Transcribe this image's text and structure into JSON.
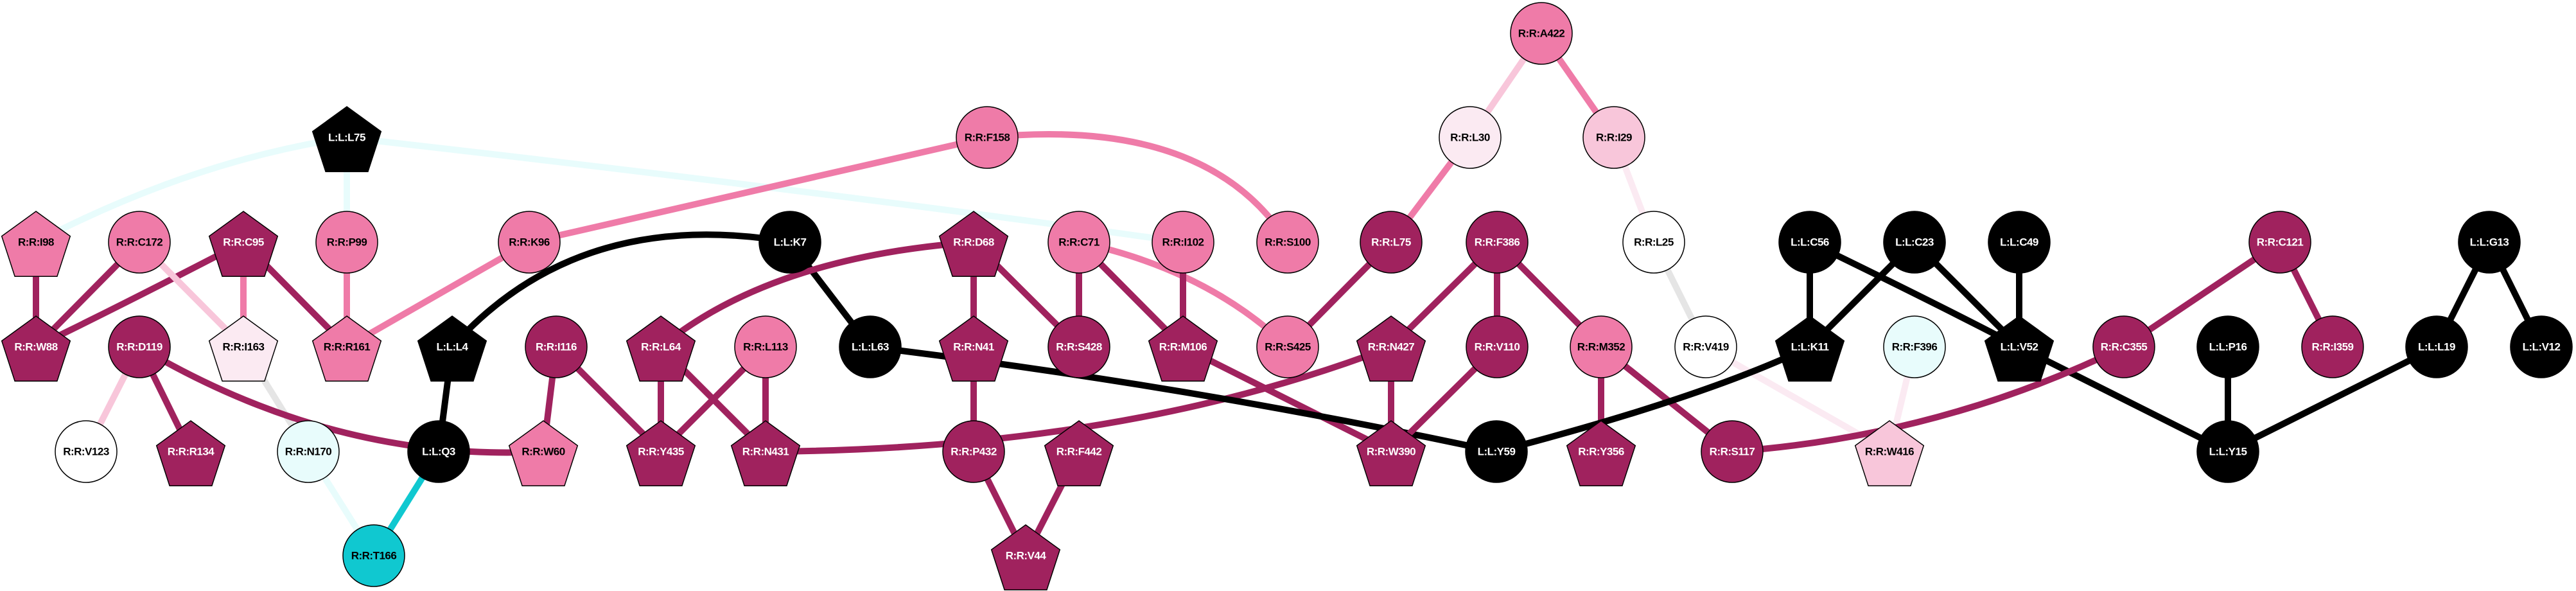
{
  "palette": {
    "dark": "#A0225E",
    "pink": "#EF7BA8",
    "light_pink": "#F8C6DA",
    "pale_pink": "#FBEAF2",
    "white": "#FFFFFF",
    "pale_cyan": "#E8FCFC",
    "cyan": "#10C8D0",
    "black": "#000000",
    "grey": "#E5E5E5"
  },
  "nodes": [
    {
      "label": "R:R:A422",
      "shape": "ellipse",
      "color": "pink"
    },
    {
      "label": "L:L:L75",
      "shape": "pentagon",
      "color": "black"
    },
    {
      "label": "R:R:F158",
      "shape": "ellipse",
      "color": "pink"
    },
    {
      "label": "R:R:L30",
      "shape": "ellipse",
      "color": "pale_pink"
    },
    {
      "label": "R:R:I29",
      "shape": "ellipse",
      "color": "light_pink"
    },
    {
      "label": "R:R:I98",
      "shape": "pentagon",
      "color": "pink"
    },
    {
      "label": "R:R:C172",
      "shape": "ellipse",
      "color": "pink"
    },
    {
      "label": "R:R:C95",
      "shape": "pentagon",
      "color": "dark"
    },
    {
      "label": "R:R:P99",
      "shape": "ellipse",
      "color": "pink"
    },
    {
      "label": "R:R:K96",
      "shape": "ellipse",
      "color": "pink"
    },
    {
      "label": "L:L:K7",
      "shape": "ellipse",
      "color": "black"
    },
    {
      "label": "R:R:D68",
      "shape": "pentagon",
      "color": "dark"
    },
    {
      "label": "R:R:C71",
      "shape": "ellipse",
      "color": "pink"
    },
    {
      "label": "R:R:I102",
      "shape": "ellipse",
      "color": "pink"
    },
    {
      "label": "R:R:S100",
      "shape": "ellipse",
      "color": "pink"
    },
    {
      "label": "R:R:L75",
      "shape": "ellipse",
      "color": "dark"
    },
    {
      "label": "R:R:F386",
      "shape": "ellipse",
      "color": "dark"
    },
    {
      "label": "R:R:L25",
      "shape": "ellipse",
      "color": "white"
    },
    {
      "label": "L:L:C56",
      "shape": "ellipse",
      "color": "black"
    },
    {
      "label": "L:L:C23",
      "shape": "ellipse",
      "color": "black"
    },
    {
      "label": "L:L:C49",
      "shape": "ellipse",
      "color": "black"
    },
    {
      "label": "R:R:C121",
      "shape": "ellipse",
      "color": "dark"
    },
    {
      "label": "L:L:G13",
      "shape": "ellipse",
      "color": "black"
    },
    {
      "label": "R:R:W88",
      "shape": "pentagon",
      "color": "dark"
    },
    {
      "label": "R:R:D119",
      "shape": "ellipse",
      "color": "dark"
    },
    {
      "label": "R:R:I163",
      "shape": "pentagon",
      "color": "pale_pink"
    },
    {
      "label": "R:R:R161",
      "shape": "pentagon",
      "color": "pink"
    },
    {
      "label": "L:L:L4",
      "shape": "pentagon",
      "color": "black"
    },
    {
      "label": "R:R:I116",
      "shape": "ellipse",
      "color": "dark"
    },
    {
      "label": "R:R:L64",
      "shape": "pentagon",
      "color": "dark"
    },
    {
      "label": "R:R:L113",
      "shape": "ellipse",
      "color": "pink"
    },
    {
      "label": "L:L:L63",
      "shape": "ellipse",
      "color": "black"
    },
    {
      "label": "R:R:N41",
      "shape": "pentagon",
      "color": "dark"
    },
    {
      "label": "R:R:S428",
      "shape": "ellipse",
      "color": "dark"
    },
    {
      "label": "R:R:M106",
      "shape": "pentagon",
      "color": "dark"
    },
    {
      "label": "R:R:S425",
      "shape": "ellipse",
      "color": "pink"
    },
    {
      "label": "R:R:N427",
      "shape": "pentagon",
      "color": "dark"
    },
    {
      "label": "R:R:V110",
      "shape": "ellipse",
      "color": "dark"
    },
    {
      "label": "R:R:M352",
      "shape": "ellipse",
      "color": "pink"
    },
    {
      "label": "R:R:V419",
      "shape": "ellipse",
      "color": "white"
    },
    {
      "label": "L:L:K11",
      "shape": "pentagon",
      "color": "black"
    },
    {
      "label": "R:R:F396",
      "shape": "ellipse",
      "color": "pale_cyan"
    },
    {
      "label": "L:L:V52",
      "shape": "pentagon",
      "color": "black"
    },
    {
      "label": "R:R:C355",
      "shape": "ellipse",
      "color": "dark"
    },
    {
      "label": "L:L:P16",
      "shape": "ellipse",
      "color": "black"
    },
    {
      "label": "R:R:I359",
      "shape": "ellipse",
      "color": "dark"
    },
    {
      "label": "L:L:L19",
      "shape": "ellipse",
      "color": "black"
    },
    {
      "label": "L:L:V12",
      "shape": "ellipse",
      "color": "black"
    },
    {
      "label": "R:R:V123",
      "shape": "ellipse",
      "color": "white"
    },
    {
      "label": "R:R:R134",
      "shape": "pentagon",
      "color": "dark"
    },
    {
      "label": "R:R:N170",
      "shape": "ellipse",
      "color": "pale_cyan"
    },
    {
      "label": "L:L:Q3",
      "shape": "ellipse",
      "color": "black"
    },
    {
      "label": "R:R:W60",
      "shape": "pentagon",
      "color": "pink"
    },
    {
      "label": "R:R:Y435",
      "shape": "pentagon",
      "color": "dark"
    },
    {
      "label": "R:R:N431",
      "shape": "pentagon",
      "color": "dark"
    },
    {
      "label": "R:R:P432",
      "shape": "ellipse",
      "color": "dark"
    },
    {
      "label": "R:R:F442",
      "shape": "pentagon",
      "color": "dark"
    },
    {
      "label": "R:R:W390",
      "shape": "pentagon",
      "color": "dark"
    },
    {
      "label": "L:L:Y59",
      "shape": "ellipse",
      "color": "black"
    },
    {
      "label": "R:R:Y356",
      "shape": "pentagon",
      "color": "dark"
    },
    {
      "label": "R:R:S117",
      "shape": "ellipse",
      "color": "dark"
    },
    {
      "label": "R:R:W416",
      "shape": "pentagon",
      "color": "light_pink"
    },
    {
      "label": "L:L:Y15",
      "shape": "ellipse",
      "color": "black"
    },
    {
      "label": "R:R:T166",
      "shape": "ellipse",
      "color": "cyan"
    },
    {
      "label": "R:R:V44",
      "shape": "pentagon",
      "color": "dark"
    }
  ],
  "edges": [
    [
      "L:L:L75",
      "R:R:I98",
      "pale_cyan"
    ],
    [
      "L:L:L75",
      "R:R:P99",
      "pale_cyan"
    ],
    [
      "L:L:L75",
      "R:R:I102",
      "pale_cyan"
    ],
    [
      "R:R:I98",
      "R:R:W88",
      "dark"
    ],
    [
      "R:R:C172",
      "R:R:W88",
      "dark"
    ],
    [
      "R:R:C95",
      "R:R:W88",
      "dark"
    ],
    [
      "R:R:C172",
      "R:R:I163",
      "light_pink"
    ],
    [
      "R:R:C95",
      "R:R:I163",
      "pink"
    ],
    [
      "R:R:C95",
      "R:R:R161",
      "dark"
    ],
    [
      "R:R:P99",
      "R:R:R161",
      "pink"
    ],
    [
      "R:R:K96",
      "R:R:R161",
      "pink"
    ],
    [
      "R:R:F158",
      "R:R:K96",
      "pink"
    ],
    [
      "R:R:F158",
      "R:R:S100",
      "pink"
    ],
    [
      "L:L:K7",
      "L:L:L4",
      "black"
    ],
    [
      "L:L:K7",
      "L:L:L63",
      "black"
    ],
    [
      "L:L:L4",
      "L:L:Q3",
      "black"
    ],
    [
      "L:L:Q3",
      "R:R:T166",
      "cyan"
    ],
    [
      "R:R:N170",
      "R:R:T166",
      "pale_cyan"
    ],
    [
      "R:R:I163",
      "R:R:N170",
      "grey"
    ],
    [
      "R:R:D119",
      "R:R:V123",
      "light_pink"
    ],
    [
      "R:R:D119",
      "R:R:R134",
      "dark"
    ],
    [
      "R:R:D119",
      "R:R:W60",
      "dark"
    ],
    [
      "R:R:I116",
      "R:R:W60",
      "dark"
    ],
    [
      "R:R:I116",
      "R:R:Y435",
      "dark"
    ],
    [
      "R:R:L64",
      "R:R:Y435",
      "dark"
    ],
    [
      "R:R:L64",
      "R:R:N431",
      "dark"
    ],
    [
      "R:R:L113",
      "R:R:Y435",
      "dark"
    ],
    [
      "R:R:L113",
      "R:R:N431",
      "dark"
    ],
    [
      "R:R:D68",
      "R:R:L64",
      "dark"
    ],
    [
      "R:R:N427",
      "R:R:N431",
      "dark"
    ],
    [
      "R:R:D68",
      "R:R:N41",
      "dark"
    ],
    [
      "R:R:D68",
      "R:R:S428",
      "dark"
    ],
    [
      "R:R:N41",
      "R:R:P432",
      "dark"
    ],
    [
      "R:R:P432",
      "R:R:V44",
      "dark"
    ],
    [
      "R:R:F442",
      "R:R:V44",
      "dark"
    ],
    [
      "R:R:C71",
      "R:R:S428",
      "dark"
    ],
    [
      "R:R:C71",
      "R:R:M106",
      "dark"
    ],
    [
      "R:R:C71",
      "R:R:S425",
      "pink"
    ],
    [
      "R:R:I102",
      "R:R:M106",
      "dark"
    ],
    [
      "R:R:M106",
      "R:R:W390",
      "dark"
    ],
    [
      "L:L:L63",
      "L:L:Y59",
      "black"
    ],
    [
      "R:R:A422",
      "R:R:L30",
      "light_pink"
    ],
    [
      "R:R:A422",
      "R:R:I29",
      "pink"
    ],
    [
      "R:R:L30",
      "R:R:L75",
      "pink"
    ],
    [
      "R:R:L75",
      "R:R:S425",
      "dark"
    ],
    [
      "R:R:F386",
      "R:R:N427",
      "dark"
    ],
    [
      "R:R:F386",
      "R:R:V110",
      "dark"
    ],
    [
      "R:R:F386",
      "R:R:M352",
      "dark"
    ],
    [
      "R:R:N427",
      "R:R:W390",
      "dark"
    ],
    [
      "R:R:V110",
      "R:R:W390",
      "dark"
    ],
    [
      "R:R:M352",
      "R:R:Y356",
      "dark"
    ],
    [
      "R:R:M352",
      "R:R:S117",
      "dark"
    ],
    [
      "R:R:I29",
      "R:R:L25",
      "pale_pink"
    ],
    [
      "R:R:L25",
      "R:R:V419",
      "grey"
    ],
    [
      "R:R:V419",
      "R:R:W416",
      "pale_pink"
    ],
    [
      "R:R:F396",
      "R:R:W416",
      "pale_pink"
    ],
    [
      "L:L:K11",
      "L:L:Y59",
      "black"
    ],
    [
      "L:L:C56",
      "L:L:K11",
      "black"
    ],
    [
      "L:L:C23",
      "L:L:K11",
      "black"
    ],
    [
      "L:L:C56",
      "L:L:V52",
      "black"
    ],
    [
      "L:L:C23",
      "L:L:V52",
      "black"
    ],
    [
      "L:L:C49",
      "L:L:V52",
      "black"
    ],
    [
      "L:L:V52",
      "L:L:Y15",
      "black"
    ],
    [
      "L:L:P16",
      "L:L:Y15",
      "black"
    ],
    [
      "L:L:L19",
      "L:L:Y15",
      "black"
    ],
    [
      "L:L:G13",
      "L:L:L19",
      "black"
    ],
    [
      "L:L:G13",
      "L:L:V12",
      "black"
    ],
    [
      "R:R:C121",
      "R:R:C355",
      "dark"
    ],
    [
      "R:R:C121",
      "R:R:I359",
      "dark"
    ],
    [
      "R:R:C355",
      "R:R:S117",
      "dark"
    ]
  ]
}
